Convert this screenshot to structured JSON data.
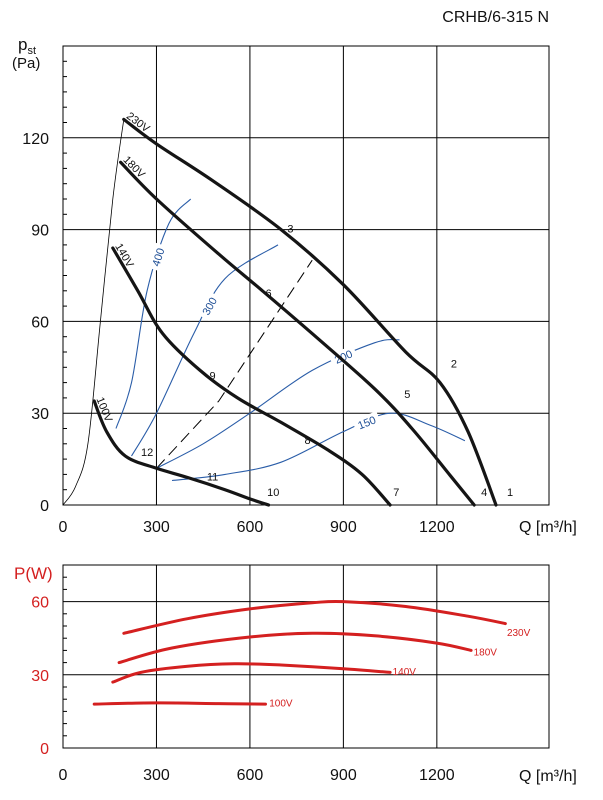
{
  "title": "CRHB/6-315 N",
  "chart_data": [
    {
      "type": "line",
      "name": "pressure-chart",
      "ylabel_main": "p",
      "ylabel_sub": "st",
      "ylabel_unit": "(Pa)",
      "xlabel": "Q [m³/h]",
      "xlim": [
        0,
        1560
      ],
      "ylim": [
        0,
        150
      ],
      "xticks": [
        0,
        300,
        600,
        900,
        1200
      ],
      "yticks": [
        0,
        30,
        60,
        90,
        120
      ],
      "grid": true,
      "voltage_curves": [
        {
          "label": "230V",
          "points": [
            [
              195,
              126
            ],
            [
              300,
              118
            ],
            [
              480,
              106
            ],
            [
              700,
              90
            ],
            [
              900,
              72
            ],
            [
              1100,
              50
            ],
            [
              1210,
              40
            ],
            [
              1300,
              24
            ],
            [
              1390,
              0
            ]
          ]
        },
        {
          "label": "180V",
          "points": [
            [
              185,
              112
            ],
            [
              300,
              100
            ],
            [
              500,
              82
            ],
            [
              640,
              70
            ],
            [
              800,
              56
            ],
            [
              1000,
              38
            ],
            [
              1120,
              25
            ],
            [
              1240,
              10
            ],
            [
              1320,
              0
            ]
          ]
        },
        {
          "label": "140V",
          "points": [
            [
              160,
              84
            ],
            [
              240,
              70
            ],
            [
              320,
              56
            ],
            [
              440,
              44
            ],
            [
              560,
              35
            ],
            [
              700,
              27
            ],
            [
              850,
              18
            ],
            [
              960,
              10
            ],
            [
              1050,
              0
            ]
          ]
        },
        {
          "label": "100V",
          "points": [
            [
              100,
              34
            ],
            [
              140,
              24
            ],
            [
              200,
              16
            ],
            [
              300,
              12
            ],
            [
              400,
              9
            ],
            [
              520,
              5
            ],
            [
              600,
              2
            ],
            [
              660,
              0
            ]
          ]
        }
      ],
      "system_lines": [
        {
          "label": "",
          "style": "thin",
          "points": [
            [
              0,
              0
            ],
            [
              40,
              6
            ],
            [
              80,
              20
            ],
            [
              120,
              60
            ],
            [
              160,
              100
            ],
            [
              195,
              126
            ]
          ]
        },
        {
          "label": "",
          "style": "dashed",
          "points": [
            [
              300,
              12
            ],
            [
              500,
              34
            ],
            [
              800,
              80
            ]
          ]
        }
      ],
      "rpm_curves": [
        {
          "label": "400",
          "points": [
            [
              170,
              25
            ],
            [
              220,
              40
            ],
            [
              270,
              70
            ],
            [
              340,
              92
            ],
            [
              410,
              100
            ]
          ]
        },
        {
          "label": "300",
          "points": [
            [
              220,
              16
            ],
            [
              300,
              30
            ],
            [
              420,
              56
            ],
            [
              520,
              74
            ],
            [
              690,
              85
            ]
          ]
        },
        {
          "label": "200",
          "points": [
            [
              300,
              12
            ],
            [
              450,
              20
            ],
            [
              600,
              30
            ],
            [
              800,
              44
            ],
            [
              1000,
              53
            ],
            [
              1080,
              54
            ]
          ]
        },
        {
          "label": "150",
          "points": [
            [
              350,
              8
            ],
            [
              520,
              10
            ],
            [
              700,
              14
            ],
            [
              900,
              24
            ],
            [
              1050,
              30
            ],
            [
              1180,
              26
            ],
            [
              1290,
              21
            ]
          ]
        }
      ],
      "point_labels": [
        {
          "label": "1",
          "x": 1435,
          "y": 3
        },
        {
          "label": "2",
          "x": 1255,
          "y": 45
        },
        {
          "label": "3",
          "x": 730,
          "y": 89
        },
        {
          "label": "4",
          "x": 1352,
          "y": 3
        },
        {
          "label": "5",
          "x": 1105,
          "y": 35
        },
        {
          "label": "6",
          "x": 660,
          "y": 68
        },
        {
          "label": "7",
          "x": 1070,
          "y": 3
        },
        {
          "label": "8",
          "x": 785,
          "y": 20
        },
        {
          "label": "9",
          "x": 480,
          "y": 41
        },
        {
          "label": "10",
          "x": 675,
          "y": 3
        },
        {
          "label": "11",
          "x": 480,
          "y": 8
        },
        {
          "label": "12",
          "x": 270,
          "y": 16
        }
      ]
    },
    {
      "type": "line",
      "name": "power-chart",
      "ylabel": "P(W)",
      "xlabel": "Q [m³/h]",
      "xlim": [
        0,
        1560
      ],
      "ylim": [
        0,
        75
      ],
      "xticks": [
        0,
        300,
        600,
        900,
        1200
      ],
      "yticks": [
        0,
        30,
        60
      ],
      "grid": true,
      "series": [
        {
          "name": "230V",
          "points": [
            [
              195,
              47
            ],
            [
              400,
              53
            ],
            [
              600,
              57
            ],
            [
              800,
              59.5
            ],
            [
              900,
              60
            ],
            [
              1100,
              58
            ],
            [
              1300,
              54
            ],
            [
              1420,
              51
            ]
          ]
        },
        {
          "name": "180V",
          "points": [
            [
              180,
              35
            ],
            [
              350,
              41
            ],
            [
              600,
              45.5
            ],
            [
              800,
              47
            ],
            [
              1000,
              46
            ],
            [
              1200,
              43
            ],
            [
              1310,
              40
            ]
          ]
        },
        {
          "name": "140V",
          "points": [
            [
              160,
              27
            ],
            [
              250,
              31
            ],
            [
              400,
              33.5
            ],
            [
              550,
              34.5
            ],
            [
              700,
              34
            ],
            [
              900,
              32.5
            ],
            [
              1050,
              31
            ]
          ]
        },
        {
          "name": "100V",
          "points": [
            [
              100,
              18
            ],
            [
              300,
              18.5
            ],
            [
              500,
              18.2
            ],
            [
              650,
              18
            ]
          ]
        }
      ],
      "label_positions": [
        {
          "name": "230V",
          "x": 1425,
          "y": 46
        },
        {
          "name": "180V",
          "x": 1318,
          "y": 38
        },
        {
          "name": "140V",
          "x": 1058,
          "y": 30
        },
        {
          "name": "100V",
          "x": 662,
          "y": 17
        }
      ]
    }
  ]
}
